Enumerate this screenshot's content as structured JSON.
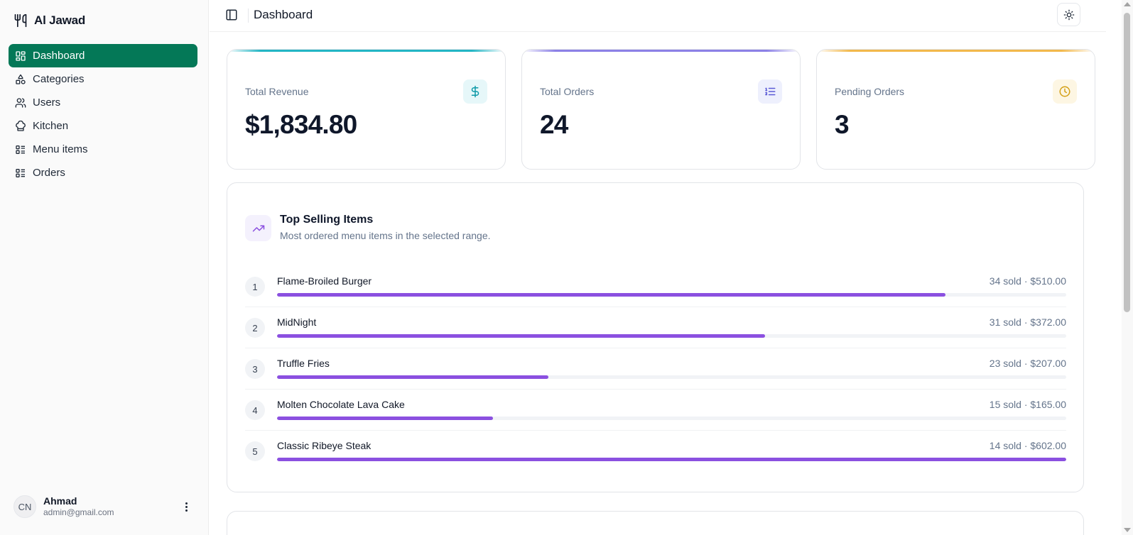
{
  "brand": {
    "name": "Al Jawad",
    "icon": "utensils-icon"
  },
  "sidebar": {
    "items": [
      {
        "label": "Dashboard",
        "icon": "layout-grid-icon",
        "active": true
      },
      {
        "label": "Categories",
        "icon": "shapes-icon",
        "active": false
      },
      {
        "label": "Users",
        "icon": "users-icon",
        "active": false
      },
      {
        "label": "Kitchen",
        "icon": "chef-hat-icon",
        "active": false
      },
      {
        "label": "Menu items",
        "icon": "list-icon",
        "active": false
      },
      {
        "label": "Orders",
        "icon": "list-icon",
        "active": false
      }
    ],
    "user": {
      "initials": "CN",
      "name": "Ahmad",
      "email": "admin@gmail.com"
    }
  },
  "header": {
    "title": "Dashboard",
    "sidebar_toggle_icon": "panel-left-icon",
    "theme_icon": "sun-icon"
  },
  "stats": [
    {
      "label": "Total Revenue",
      "value": "$1,834.80",
      "icon": "dollar-icon",
      "accent": "#22b5c4",
      "icon_bg": "#e6f7f9",
      "icon_color": "#0e9aa8"
    },
    {
      "label": "Total Orders",
      "value": "24",
      "icon": "list-ordered-icon",
      "accent": "#8b80e6",
      "icon_bg": "#eef0fd",
      "icon_color": "#5b5bd6"
    },
    {
      "label": "Pending Orders",
      "value": "3",
      "icon": "clock-icon",
      "accent": "#f2b84b",
      "icon_bg": "#fdf6e3",
      "icon_color": "#d4a017"
    }
  ],
  "top_selling": {
    "title": "Top Selling Items",
    "subtitle": "Most ordered menu items in the selected range.",
    "icon": "trending-up-icon",
    "bar_color": "#8b50e0",
    "items": [
      {
        "rank": "1",
        "name": "Flame-Broiled Burger",
        "stat": "34 sold · $510.00",
        "progress": 0.847
      },
      {
        "rank": "2",
        "name": "MidNight",
        "stat": "31 sold · $372.00",
        "progress": 0.618
      },
      {
        "rank": "3",
        "name": "Truffle Fries",
        "stat": "23 sold · $207.00",
        "progress": 0.344
      },
      {
        "rank": "4",
        "name": "Molten Chocolate Lava Cake",
        "stat": "15 sold · $165.00",
        "progress": 0.274
      },
      {
        "rank": "5",
        "name": "Classic Ribeye Steak",
        "stat": "14 sold · $602.00",
        "progress": 1.0
      }
    ]
  }
}
